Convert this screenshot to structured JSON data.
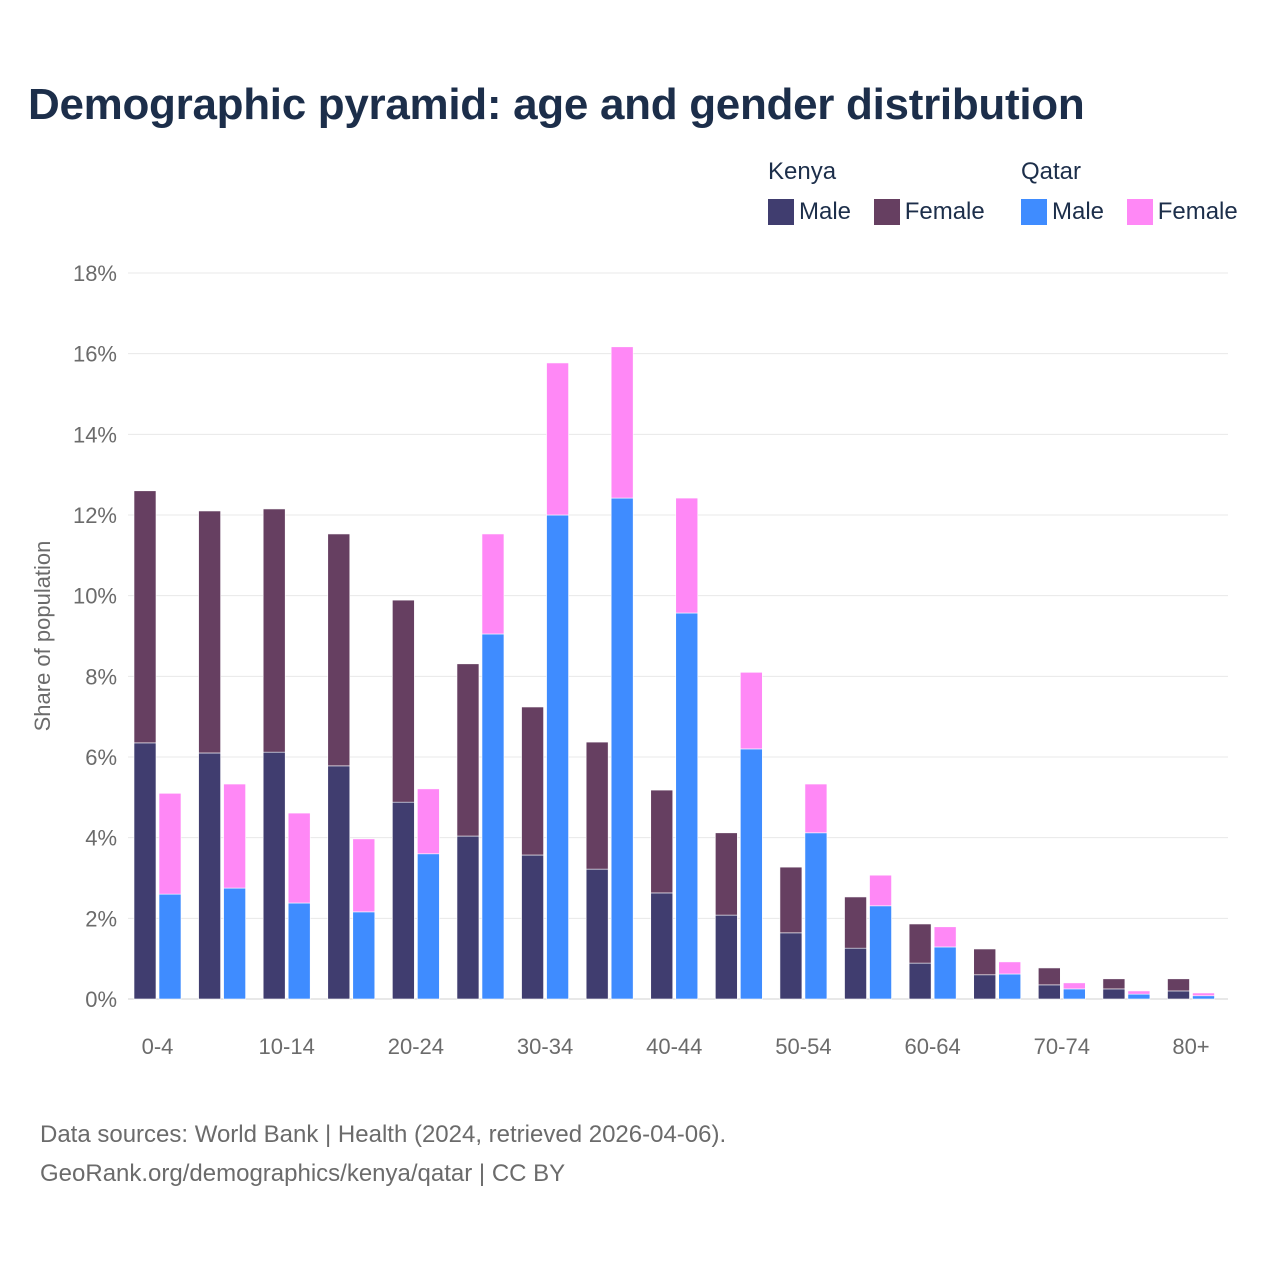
{
  "title": "Demographic pyramid: age and gender distribution",
  "legend": {
    "groups": [
      {
        "name": "Kenya",
        "items": [
          {
            "label": "Male",
            "color": "#403d6f"
          },
          {
            "label": "Female",
            "color": "#663f61"
          }
        ]
      },
      {
        "name": "Qatar",
        "items": [
          {
            "label": "Male",
            "color": "#3f8cff"
          },
          {
            "label": "Female",
            "color": "#ff88f6"
          }
        ]
      }
    ]
  },
  "source": {
    "line1": "Data sources: World Bank | Health (2024, retrieved 2026-04-06).",
    "line2": "GeoRank.org/demographics/kenya/qatar | CC BY"
  },
  "chart_data": {
    "type": "bar",
    "stacked": true,
    "title": "Demographic pyramid: age and gender distribution",
    "ylabel": "Share of population",
    "xlabel": "",
    "ylim": [
      0,
      18
    ],
    "y_ticks": [
      "0%",
      "2%",
      "4%",
      "6%",
      "8%",
      "10%",
      "12%",
      "14%",
      "16%",
      "18%"
    ],
    "y_tick_values": [
      0,
      2,
      4,
      6,
      8,
      10,
      12,
      14,
      16,
      18
    ],
    "categories": [
      "0-4",
      "5-9",
      "10-14",
      "15-19",
      "20-24",
      "25-29",
      "30-34",
      "35-39",
      "40-44",
      "45-49",
      "50-54",
      "55-59",
      "60-64",
      "65-69",
      "70-74",
      "75-79",
      "80+"
    ],
    "x_tick_labels": [
      "0-4",
      "10-14",
      "20-24",
      "30-34",
      "40-44",
      "50-54",
      "60-64",
      "70-74",
      "80+"
    ],
    "x_tick_indices": [
      0,
      2,
      4,
      6,
      8,
      10,
      12,
      14,
      16
    ],
    "grid": true,
    "legend_position": "top-right",
    "series": [
      {
        "name": "Kenya Male",
        "country": "Kenya",
        "stack": 0,
        "color": "#403d6f",
        "values": [
          6.35,
          6.1,
          6.12,
          5.78,
          4.88,
          4.04,
          3.57,
          3.22,
          2.63,
          2.08,
          1.64,
          1.26,
          0.89,
          0.6,
          0.35,
          0.25,
          0.2
        ]
      },
      {
        "name": "Kenya Female",
        "country": "Kenya",
        "stack": 0,
        "color": "#663f61",
        "values": [
          6.25,
          6.0,
          6.03,
          5.75,
          5.01,
          4.27,
          3.67,
          3.15,
          2.55,
          2.04,
          1.63,
          1.27,
          0.97,
          0.64,
          0.42,
          0.25,
          0.3
        ]
      },
      {
        "name": "Qatar Male",
        "country": "Qatar",
        "stack": 1,
        "color": "#3f8cff",
        "values": [
          2.6,
          2.75,
          2.38,
          2.16,
          3.6,
          9.05,
          12.0,
          12.42,
          9.57,
          6.2,
          4.12,
          2.31,
          1.29,
          0.62,
          0.25,
          0.12,
          0.08
        ]
      },
      {
        "name": "Qatar Female",
        "country": "Qatar",
        "stack": 1,
        "color": "#ff88f6",
        "values": [
          2.5,
          2.58,
          2.23,
          1.81,
          1.61,
          2.48,
          3.77,
          3.75,
          2.85,
          1.9,
          1.21,
          0.76,
          0.5,
          0.3,
          0.15,
          0.08,
          0.07
        ]
      }
    ]
  }
}
